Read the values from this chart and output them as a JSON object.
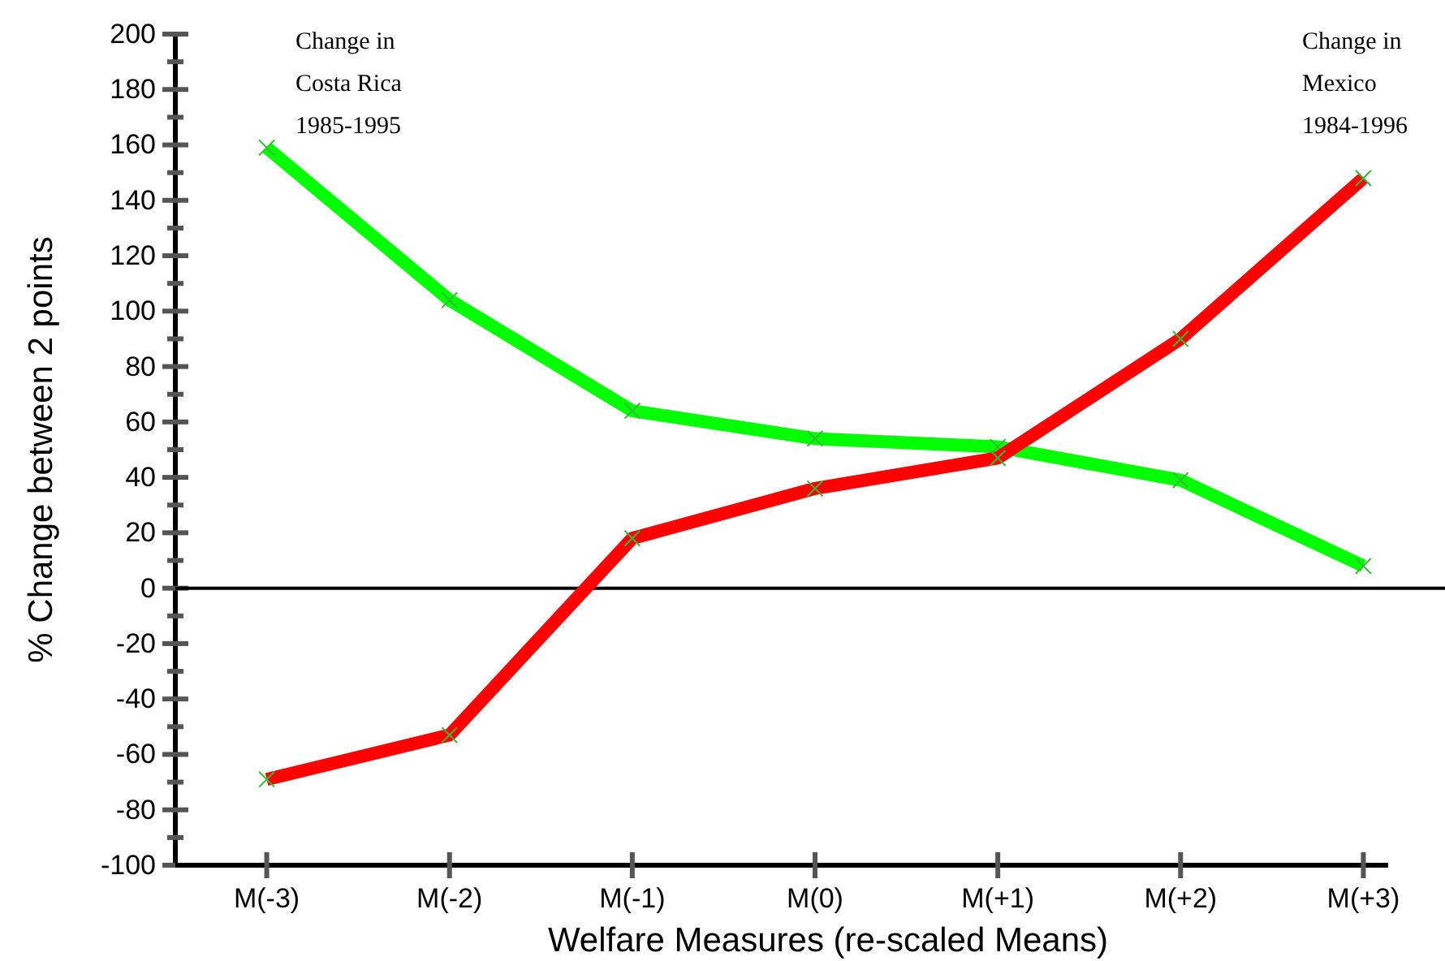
{
  "chart_data": {
    "type": "line",
    "xlabel": "Welfare Measures (re-scaled Means)",
    "ylabel": "% Change between 2 points",
    "categories": [
      "M(-3)",
      "M(-2)",
      "M(-1)",
      "M(0)",
      "M(+1)",
      "M(+2)",
      "M(+3)"
    ],
    "series": [
      {
        "name": "Change in\nCosta Rica\n1985-1995",
        "color": "#00ff00",
        "values": [
          159,
          104,
          64,
          54,
          51,
          39,
          8
        ]
      },
      {
        "name": "Change in\nMexico\n1984-1996",
        "color": "#ff0000",
        "values": [
          -69,
          -53,
          18,
          36,
          47,
          90,
          148
        ]
      }
    ],
    "ylim": [
      -100,
      200
    ],
    "yticks": [
      -100,
      {
        "value": -90,
        "label": null
      },
      -80,
      {
        "value": -70,
        "label": null
      },
      -60,
      {
        "value": -50,
        "label": null
      },
      -40,
      {
        "value": -30,
        "label": null
      },
      -20,
      {
        "value": -10,
        "label": null
      },
      0,
      {
        "value": 10,
        "label": null
      },
      20,
      {
        "value": 30,
        "label": null
      },
      40,
      {
        "value": 50,
        "label": null
      },
      60,
      {
        "value": 70,
        "label": null
      },
      80,
      {
        "value": 90,
        "label": null
      },
      100,
      {
        "value": 110,
        "label": null
      },
      120,
      {
        "value": 130,
        "label": null
      },
      140,
      {
        "value": 150,
        "label": null
      },
      160,
      {
        "value": 170,
        "label": null
      },
      180,
      {
        "value": 190,
        "label": null
      },
      200
    ],
    "ref_lines": [
      {
        "axis": "y",
        "value": 0,
        "color": "#000000"
      }
    ],
    "marker": "cross",
    "line_style": "solid",
    "grid": false
  }
}
